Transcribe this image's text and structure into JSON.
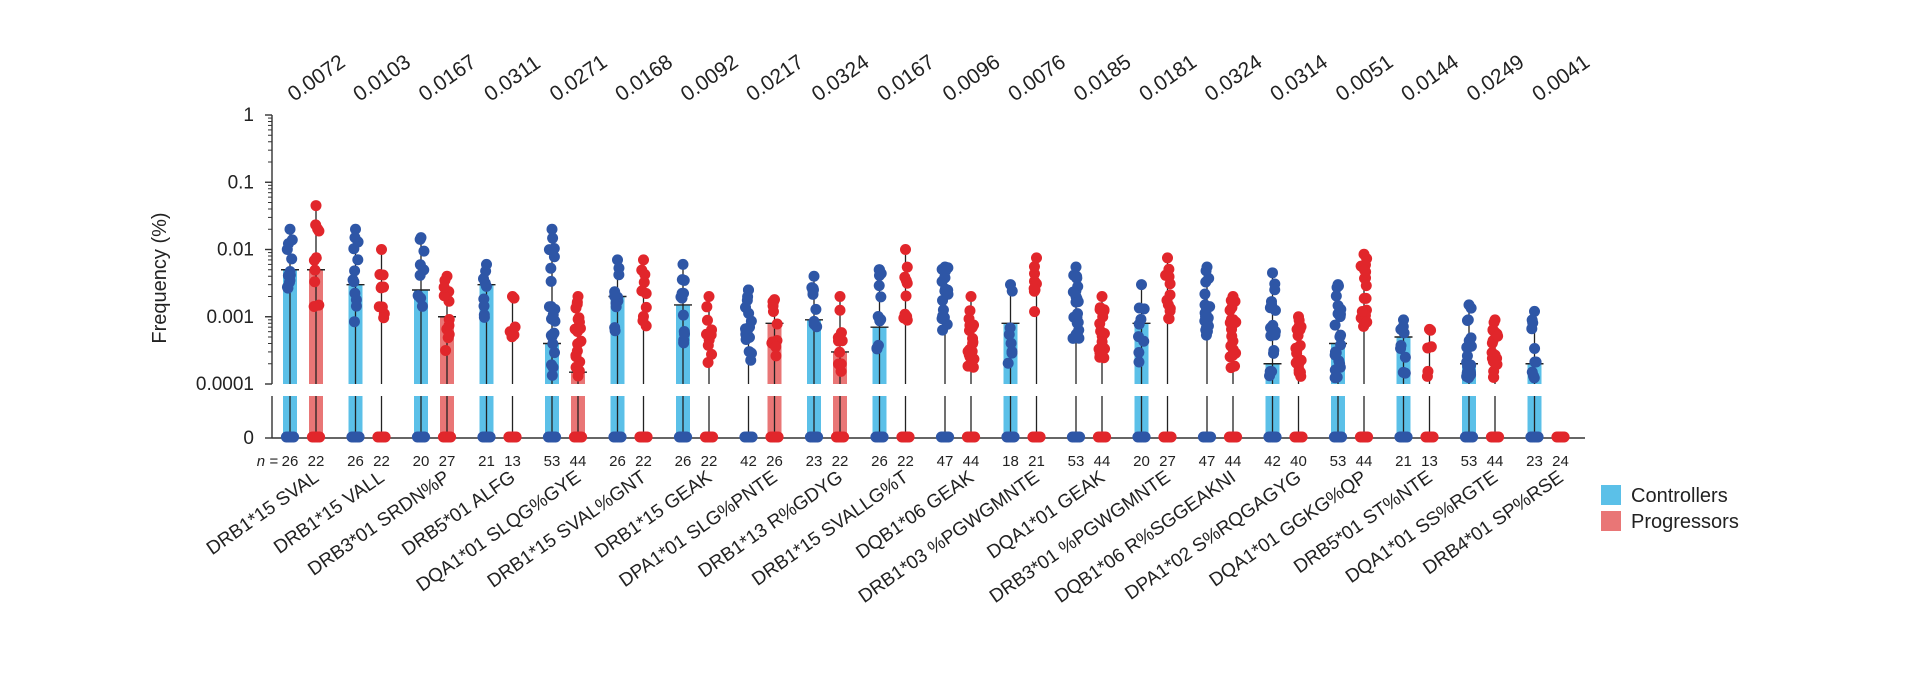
{
  "chart_data": {
    "type": "scatter",
    "ylabel": "Frequency (%)",
    "yscale": "log",
    "yticks": [
      "1",
      "0.1",
      "0.01",
      "0.001",
      "0.0001",
      "0"
    ],
    "n_prefix": "n =",
    "legend": [
      {
        "name": "Controllers",
        "color": "#5bc0e8"
      },
      {
        "name": "Progressors",
        "color": "#e97676"
      }
    ],
    "colors": {
      "controller_dot": "#2e56a6",
      "progressor_dot": "#e1262b"
    },
    "categories": [
      {
        "label": "DRB1*15 SVAL",
        "p": "0.0072",
        "n_controllers": "26",
        "n_progressors": "22",
        "bar_controllers": 0.005,
        "bar_progressors": 0.005,
        "max_controllers": 0.02,
        "max_progressors": 0.045,
        "zero_controllers": true,
        "zero_progressors": true
      },
      {
        "label": "DRB1*15 VALL",
        "p": "0.0103",
        "n_controllers": "26",
        "n_progressors": "22",
        "bar_controllers": 0.003,
        "bar_progressors": null,
        "max_controllers": 0.02,
        "max_progressors": 0.01,
        "zero_controllers": true,
        "zero_progressors": true
      },
      {
        "label": "DRB3*01 SRDN%P",
        "p": "0.0167",
        "n_controllers": "20",
        "n_progressors": "27",
        "bar_controllers": 0.0025,
        "bar_progressors": 0.001,
        "max_controllers": 0.015,
        "max_progressors": 0.004,
        "zero_controllers": true,
        "zero_progressors": true
      },
      {
        "label": "DRB5*01 ALFG",
        "p": "0.0311",
        "n_controllers": "21",
        "n_progressors": "13",
        "bar_controllers": 0.003,
        "bar_progressors": null,
        "max_controllers": 0.006,
        "max_progressors": 0.002,
        "zero_controllers": true,
        "zero_progressors": true
      },
      {
        "label": "DQA1*01 SLQG%GYE",
        "p": "0.0271",
        "n_controllers": "53",
        "n_progressors": "44",
        "bar_controllers": 0.0004,
        "bar_progressors": 0.00015,
        "max_controllers": 0.02,
        "max_progressors": 0.002,
        "zero_controllers": true,
        "zero_progressors": true
      },
      {
        "label": "DRB1*15 SVAL%GNT",
        "p": "0.0168",
        "n_controllers": "26",
        "n_progressors": "22",
        "bar_controllers": 0.002,
        "bar_progressors": null,
        "max_controllers": 0.007,
        "max_progressors": 0.007,
        "zero_controllers": true,
        "zero_progressors": true
      },
      {
        "label": "DRB1*15 GEAK",
        "p": "0.0092",
        "n_controllers": "26",
        "n_progressors": "22",
        "bar_controllers": 0.0015,
        "bar_progressors": null,
        "max_controllers": 0.006,
        "max_progressors": 0.002,
        "zero_controllers": true,
        "zero_progressors": true
      },
      {
        "label": "DPA1*01 SLG%PNTE",
        "p": "0.0217",
        "n_controllers": "42",
        "n_progressors": "26",
        "bar_controllers": null,
        "bar_progressors": 0.0008,
        "max_controllers": 0.0025,
        "max_progressors": 0.0018,
        "zero_controllers": true,
        "zero_progressors": true
      },
      {
        "label": "DRB1*13 R%GDYG",
        "p": "0.0324",
        "n_controllers": "23",
        "n_progressors": "22",
        "bar_controllers": 0.0009,
        "bar_progressors": 0.0003,
        "max_controllers": 0.004,
        "max_progressors": 0.002,
        "zero_controllers": true,
        "zero_progressors": true
      },
      {
        "label": "DRB1*15 SVALLG%T",
        "p": "0.0167",
        "n_controllers": "26",
        "n_progressors": "22",
        "bar_controllers": 0.0007,
        "bar_progressors": null,
        "max_controllers": 0.005,
        "max_progressors": 0.01,
        "zero_controllers": true,
        "zero_progressors": true
      },
      {
        "label": "DQB1*06 GEAK",
        "p": "0.0096",
        "n_controllers": "47",
        "n_progressors": "44",
        "bar_controllers": null,
        "bar_progressors": null,
        "max_controllers": 0.0055,
        "max_progressors": 0.002,
        "zero_controllers": true,
        "zero_progressors": true
      },
      {
        "label": "DRB1*03 %PGWGMNTE",
        "p": "0.0076",
        "n_controllers": "18",
        "n_progressors": "21",
        "bar_controllers": 0.0008,
        "bar_progressors": null,
        "max_controllers": 0.003,
        "max_progressors": 0.0075,
        "zero_controllers": true,
        "zero_progressors": true
      },
      {
        "label": "DQA1*01 GEAK",
        "p": "0.0185",
        "n_controllers": "53",
        "n_progressors": "44",
        "bar_controllers": null,
        "bar_progressors": null,
        "max_controllers": 0.0055,
        "max_progressors": 0.002,
        "zero_controllers": true,
        "zero_progressors": true
      },
      {
        "label": "DRB3*01 %PGWGMNTE",
        "p": "0.0181",
        "n_controllers": "20",
        "n_progressors": "27",
        "bar_controllers": 0.0008,
        "bar_progressors": null,
        "max_controllers": 0.003,
        "max_progressors": 0.0075,
        "zero_controllers": true,
        "zero_progressors": true
      },
      {
        "label": "DQB1*06 R%SGGEAKNI",
        "p": "0.0324",
        "n_controllers": "47",
        "n_progressors": "44",
        "bar_controllers": null,
        "bar_progressors": null,
        "max_controllers": 0.0055,
        "max_progressors": 0.002,
        "zero_controllers": true,
        "zero_progressors": true
      },
      {
        "label": "DPA1*02 S%RQGAGYG",
        "p": "0.0314",
        "n_controllers": "42",
        "n_progressors": "40",
        "bar_controllers": 0.0002,
        "bar_progressors": null,
        "max_controllers": 0.0045,
        "max_progressors": 0.001,
        "zero_controllers": true,
        "zero_progressors": true
      },
      {
        "label": "DQA1*01 GGKG%QP",
        "p": "0.0051",
        "n_controllers": "53",
        "n_progressors": "44",
        "bar_controllers": 0.0004,
        "bar_progressors": null,
        "max_controllers": 0.003,
        "max_progressors": 0.0085,
        "zero_controllers": true,
        "zero_progressors": true
      },
      {
        "label": "DRB5*01 ST%NTE",
        "p": "0.0144",
        "n_controllers": "21",
        "n_progressors": "13",
        "bar_controllers": 0.0005,
        "bar_progressors": null,
        "max_controllers": 0.0009,
        "max_progressors": 0.00065,
        "zero_controllers": true,
        "zero_progressors": true
      },
      {
        "label": "DQA1*01 SS%RGTE",
        "p": "0.0249",
        "n_controllers": "53",
        "n_progressors": "44",
        "bar_controllers": 0.0002,
        "bar_progressors": null,
        "max_controllers": 0.0015,
        "max_progressors": 0.0009,
        "zero_controllers": true,
        "zero_progressors": true
      },
      {
        "label": "DRB4*01 SP%RSE",
        "p": "0.0041",
        "n_controllers": "23",
        "n_progressors": "24",
        "bar_controllers": 0.0002,
        "bar_progressors": null,
        "max_controllers": 0.0012,
        "max_progressors": null,
        "zero_controllers": true,
        "zero_progressors": true
      }
    ]
  }
}
